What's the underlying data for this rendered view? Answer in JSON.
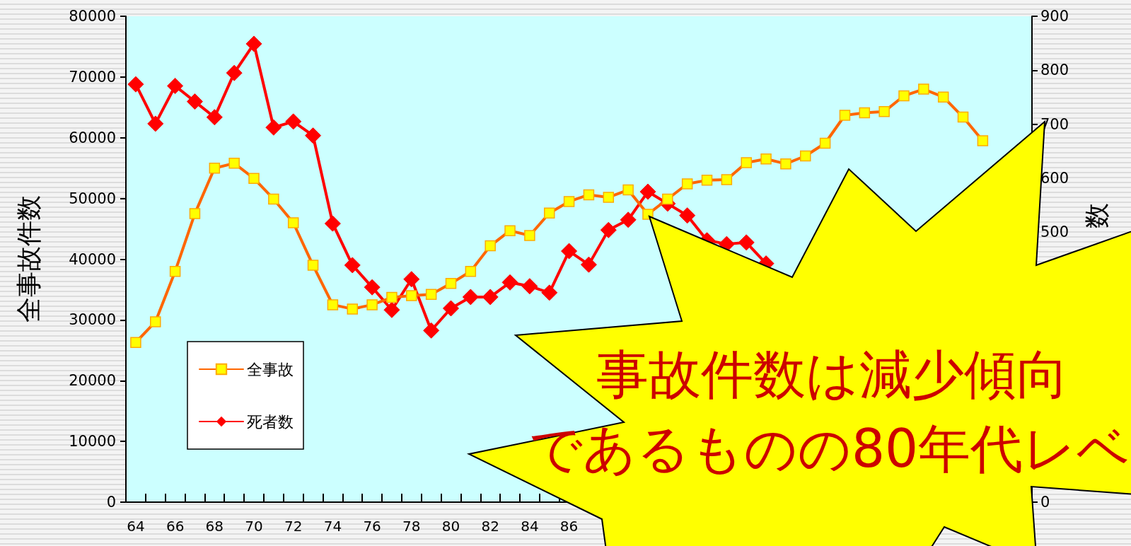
{
  "chart_data": {
    "type": "line",
    "ylabel": "全事故件数",
    "y2label": "数",
    "categories": [
      "64",
      null,
      "66",
      null,
      "68",
      null,
      "70",
      null,
      "72",
      null,
      "74",
      null,
      "76",
      null,
      "78",
      null,
      "80",
      null,
      "82",
      null,
      "84",
      null,
      "86",
      null,
      null,
      null,
      null,
      null,
      null,
      null,
      null,
      null,
      null,
      null,
      null,
      null,
      null,
      null,
      null,
      null,
      null,
      null,
      null,
      null,
      null,
      null
    ],
    "series": [
      {
        "name": "全事故",
        "color": "#ff6600",
        "marker": "square",
        "values": [
          26300,
          29700,
          38000,
          47500,
          55000,
          55800,
          53300,
          49900,
          46000,
          39000,
          32500,
          31800,
          32500,
          33700,
          34000,
          34200,
          36000,
          38000,
          42200,
          44700,
          43900,
          47600,
          49500,
          50600,
          50200,
          51400,
          47400,
          49900,
          52400,
          53000,
          53100,
          55900,
          56500,
          55700,
          57000,
          59100,
          63700,
          64100,
          64300,
          66900,
          68000,
          66700,
          63400,
          59500,
          null,
          null
        ]
      },
      {
        "name": "死者数",
        "color": "#ff0000",
        "marker": "diamond",
        "axis": "y2",
        "values": [
          774,
          701,
          771,
          742,
          713,
          795,
          849,
          694,
          705,
          679,
          516,
          439,
          398,
          356,
          413,
          318,
          359,
          380,
          380,
          407,
          400,
          388,
          465,
          440,
          504,
          523,
          575,
          553,
          531,
          485,
          478,
          481,
          442,
          null,
          null,
          null,
          null,
          null,
          null,
          null,
          null,
          null,
          null,
          null,
          null,
          null
        ]
      }
    ],
    "ylim": [
      0,
      80000
    ],
    "yticks": [
      0,
      10000,
      20000,
      30000,
      40000,
      50000,
      60000,
      70000,
      80000
    ],
    "y2lim": [
      0,
      900
    ],
    "y2ticks": [
      0,
      500,
      600,
      700,
      800,
      900
    ],
    "grid": false,
    "legend": "bottom left",
    "line_style": "solid",
    "annotations": [
      "事故件数は減少傾向",
      "であるものの80年代レベ"
    ]
  }
}
